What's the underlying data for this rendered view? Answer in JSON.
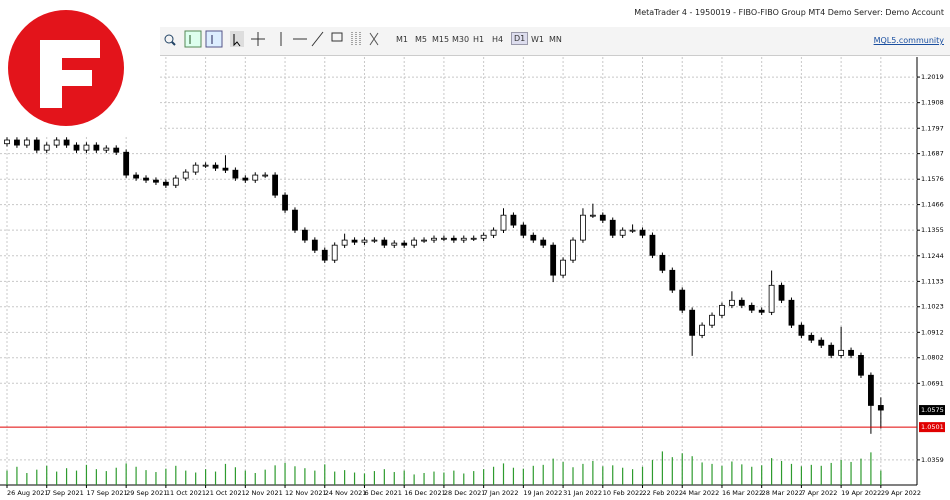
{
  "window_title": "MetaTrader 4 - 1950019 - FIBO-FIBO Group MT4 Demo Server: Demo Account",
  "toolbar": {
    "timeframes": [
      "M1",
      "M5",
      "M15",
      "M30",
      "H1",
      "H4",
      "D1",
      "W1",
      "MN"
    ],
    "link": "MQL5.community"
  },
  "chart_data": {
    "type": "candlestick",
    "categories": [
      "26 Aug 2021",
      null,
      null,
      null,
      "7 Sep 2021",
      null,
      null,
      null,
      "17 Sep 2021",
      null,
      null,
      null,
      "29 Sep 2021",
      null,
      null,
      null,
      "11 Oct 2021",
      null,
      null,
      null,
      "21 Oct 2021",
      null,
      null,
      null,
      "2 Nov 2021",
      null,
      null,
      null,
      "12 Nov 2021",
      null,
      null,
      null,
      "24 Nov 2021",
      null,
      null,
      null,
      "6 Dec 2021",
      null,
      null,
      null,
      "16 Dec 2021",
      null,
      null,
      null,
      "28 Dec 2021",
      null,
      null,
      null,
      "7 Jan 2022",
      null,
      null,
      null,
      "19 Jan 2022",
      null,
      null,
      null,
      "31 Jan 2022",
      null,
      null,
      null,
      "10 Feb 2022",
      null,
      null,
      null,
      "22 Feb 2022",
      null,
      null,
      null,
      "4 Mar 2022",
      null,
      null,
      null,
      "16 Mar 2022",
      null,
      null,
      null,
      "28 Mar 2022",
      null,
      null,
      null,
      "7 Apr 2022",
      null,
      null,
      null,
      "19 Apr 2022",
      null,
      null,
      null,
      "29 Apr 2022"
    ],
    "open": [
      1.173,
      1.1746,
      1.1724,
      1.1746,
      1.1702,
      1.1724,
      1.1746,
      1.1724,
      1.1702,
      1.1724,
      1.1702,
      1.1711,
      1.1693,
      1.1594,
      1.1581,
      1.1572,
      1.1563,
      1.155,
      1.1581,
      1.1607,
      1.1637,
      1.1637,
      1.1624,
      1.1615,
      1.1581,
      1.1572,
      1.1594,
      1.1594,
      1.1507,
      1.1442,
      1.1355,
      1.1312,
      1.1268,
      1.1225,
      1.129,
      1.1312,
      1.1303,
      1.1312,
      1.1312,
      1.129,
      1.1299,
      1.129,
      1.1312,
      1.1312,
      1.132,
      1.132,
      1.1312,
      1.132,
      1.132,
      1.1333,
      1.1355,
      1.142,
      1.1377,
      1.1333,
      1.1312,
      1.129,
      1.116,
      1.1225,
      1.1312,
      1.142,
      1.142,
      1.1398,
      1.1333,
      1.1355,
      1.1355,
      1.1333,
      1.1246,
      1.1181,
      1.1095,
      1.1008,
      1.0899,
      1.0943,
      1.0986,
      1.1029,
      1.1051,
      1.1029,
      1.1008,
      1.0999,
      1.1116,
      1.1051,
      1.0943,
      1.0899,
      1.0878,
      1.0856,
      1.0812,
      1.0834,
      1.0812,
      1.0726,
      1.0595
    ],
    "high": [
      1.1758,
      1.1758,
      1.1758,
      1.1758,
      1.1736,
      1.1758,
      1.1758,
      1.1736,
      1.1736,
      1.1736,
      1.1723,
      1.1723,
      1.1705,
      1.1606,
      1.1593,
      1.1584,
      1.1575,
      1.1593,
      1.1619,
      1.1649,
      1.1649,
      1.1649,
      1.168,
      1.1627,
      1.1593,
      1.1606,
      1.1606,
      1.1606,
      1.1519,
      1.1454,
      1.1367,
      1.1324,
      1.128,
      1.1302,
      1.134,
      1.1324,
      1.1324,
      1.1324,
      1.1324,
      1.1311,
      1.1311,
      1.1324,
      1.1324,
      1.1332,
      1.1332,
      1.1332,
      1.1332,
      1.1332,
      1.1345,
      1.1367,
      1.145,
      1.1432,
      1.1389,
      1.1345,
      1.1324,
      1.1302,
      1.1237,
      1.1324,
      1.145,
      1.147,
      1.1432,
      1.141,
      1.1367,
      1.138,
      1.1367,
      1.1345,
      1.1258,
      1.1193,
      1.1107,
      1.102,
      1.0955,
      1.0998,
      1.1041,
      1.109,
      1.1063,
      1.1041,
      1.102,
      1.118,
      1.1128,
      1.1063,
      1.0955,
      1.0911,
      1.089,
      1.0868,
      1.0936,
      1.0846,
      1.0824,
      1.0738,
      1.063
    ],
    "low": [
      1.1718,
      1.1712,
      1.1712,
      1.169,
      1.169,
      1.1712,
      1.1712,
      1.169,
      1.169,
      1.169,
      1.169,
      1.1681,
      1.1582,
      1.1569,
      1.156,
      1.1551,
      1.1538,
      1.1538,
      1.1569,
      1.1595,
      1.1625,
      1.1612,
      1.1603,
      1.1569,
      1.156,
      1.156,
      1.1582,
      1.1495,
      1.143,
      1.1343,
      1.13,
      1.1256,
      1.1213,
      1.1213,
      1.1278,
      1.1291,
      1.1291,
      1.13,
      1.1278,
      1.1278,
      1.1278,
      1.1278,
      1.13,
      1.13,
      1.1308,
      1.13,
      1.13,
      1.1308,
      1.1308,
      1.1321,
      1.1343,
      1.1365,
      1.1321,
      1.13,
      1.1278,
      1.113,
      1.1148,
      1.1213,
      1.13,
      1.1408,
      1.1386,
      1.1321,
      1.1321,
      1.1343,
      1.1321,
      1.1234,
      1.1169,
      1.1083,
      1.0996,
      1.081,
      1.0887,
      1.0931,
      1.0974,
      1.1017,
      1.1017,
      1.0996,
      1.0987,
      1.0987,
      1.1039,
      1.0931,
      1.0887,
      1.0866,
      1.0844,
      1.08,
      1.08,
      1.08,
      1.0714,
      1.0472,
      1.0495
    ],
    "close": [
      1.1746,
      1.1724,
      1.1746,
      1.1702,
      1.1724,
      1.1746,
      1.1724,
      1.1702,
      1.1724,
      1.1702,
      1.1711,
      1.1693,
      1.1594,
      1.1581,
      1.1572,
      1.1563,
      1.155,
      1.1581,
      1.1607,
      1.1637,
      1.1637,
      1.1624,
      1.1615,
      1.1581,
      1.1572,
      1.1594,
      1.1594,
      1.1507,
      1.1442,
      1.1355,
      1.1312,
      1.1268,
      1.1225,
      1.129,
      1.1312,
      1.1303,
      1.1312,
      1.1312,
      1.129,
      1.1299,
      1.129,
      1.1312,
      1.1312,
      1.132,
      1.132,
      1.1312,
      1.132,
      1.132,
      1.1333,
      1.1355,
      1.142,
      1.1377,
      1.1333,
      1.1312,
      1.129,
      1.116,
      1.1225,
      1.1312,
      1.142,
      1.142,
      1.1398,
      1.1333,
      1.1355,
      1.1355,
      1.1333,
      1.1246,
      1.1181,
      1.1095,
      1.1008,
      1.0899,
      1.0943,
      1.0986,
      1.1029,
      1.1051,
      1.1029,
      1.1008,
      1.0999,
      1.1116,
      1.1051,
      1.0943,
      1.0899,
      1.0878,
      1.0856,
      1.0812,
      1.0834,
      1.0812,
      1.0726,
      1.0595,
      1.0575
    ],
    "volume": {
      "color": "#2e9b2e",
      "lim": [
        0,
        100
      ],
      "values": [
        30,
        38,
        25,
        32,
        40,
        28,
        35,
        30,
        42,
        33,
        29,
        36,
        45,
        38,
        31,
        27,
        34,
        40,
        30,
        26,
        33,
        28,
        44,
        37,
        30,
        25,
        32,
        41,
        46,
        39,
        35,
        30,
        43,
        28,
        31,
        26,
        24,
        29,
        33,
        27,
        30,
        22,
        25,
        28,
        26,
        30,
        24,
        29,
        33,
        38,
        45,
        36,
        34,
        40,
        42,
        55,
        48,
        37,
        44,
        50,
        39,
        41,
        36,
        33,
        38,
        52,
        70,
        58,
        66,
        60,
        47,
        44,
        40,
        49,
        43,
        38,
        41,
        56,
        50,
        44,
        39,
        42,
        40,
        46,
        52,
        48,
        55,
        68,
        30
      ]
    },
    "ylim": [
      1.025,
      1.2106
    ],
    "yticks": [
      1.2019,
      1.1908,
      1.1797,
      1.1687,
      1.1576,
      1.1466,
      1.1355,
      1.1244,
      1.1133,
      1.1023,
      1.0912,
      1.0802,
      1.0691,
      1.0359
    ],
    "last_price": 1.0575,
    "bid_line": 1.0501,
    "bid_color": "#e00000",
    "up_color": "#ffffff",
    "down_color": "#000000",
    "grid": true
  }
}
